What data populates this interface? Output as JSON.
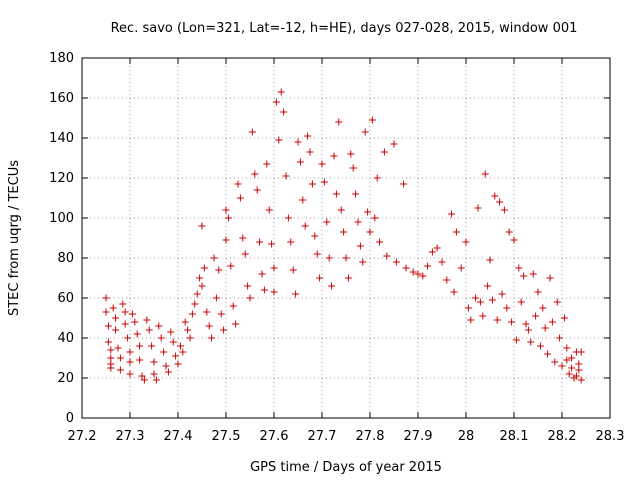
{
  "chart_data": {
    "type": "scatter",
    "title": "Rec. savo (Lon=321, Lat=-12, h=HE), days 027-028, 2015, window 001",
    "xlabel": "GPS time / Days of year 2015",
    "ylabel": "STEC from uqrg / TECUs",
    "xlim": [
      27.2,
      28.3
    ],
    "ylim": [
      0,
      180
    ],
    "xticks": [
      27.2,
      27.3,
      27.4,
      27.5,
      27.6,
      27.7,
      27.8,
      27.9,
      28,
      28.1,
      28.2,
      28.3
    ],
    "xtick_labels": [
      "27.2",
      "27.3",
      "27.4",
      "27.5",
      "27.6",
      "27.7",
      "27.8",
      "27.9",
      "28",
      "28.1",
      "28.2",
      "28.3"
    ],
    "yticks": [
      0,
      20,
      40,
      60,
      80,
      100,
      120,
      140,
      160,
      180
    ],
    "ytick_labels": [
      "0",
      "20",
      "40",
      "60",
      "80",
      "100",
      "120",
      "140",
      "160",
      "180"
    ],
    "grid": true,
    "marker": "+",
    "marker_color": "#cc0000",
    "series": [
      {
        "points": [
          [
            27.25,
            60
          ],
          [
            27.25,
            53
          ],
          [
            27.255,
            46
          ],
          [
            27.255,
            38
          ],
          [
            27.26,
            34
          ],
          [
            27.26,
            30
          ],
          [
            27.26,
            27
          ],
          [
            27.26,
            25
          ],
          [
            27.265,
            55
          ],
          [
            27.27,
            50
          ],
          [
            27.27,
            44
          ],
          [
            27.275,
            35
          ],
          [
            27.28,
            30
          ],
          [
            27.28,
            24
          ],
          [
            27.285,
            57
          ],
          [
            27.29,
            53
          ],
          [
            27.29,
            47
          ],
          [
            27.295,
            40
          ],
          [
            27.3,
            33
          ],
          [
            27.3,
            28
          ],
          [
            27.3,
            22
          ],
          [
            27.305,
            52
          ],
          [
            27.31,
            48
          ],
          [
            27.315,
            42
          ],
          [
            27.32,
            36
          ],
          [
            27.32,
            29
          ],
          [
            27.325,
            21
          ],
          [
            27.33,
            19
          ],
          [
            27.335,
            49
          ],
          [
            27.34,
            44
          ],
          [
            27.345,
            36
          ],
          [
            27.35,
            28
          ],
          [
            27.35,
            22
          ],
          [
            27.355,
            19
          ],
          [
            27.36,
            46
          ],
          [
            27.365,
            40
          ],
          [
            27.37,
            33
          ],
          [
            27.375,
            26
          ],
          [
            27.38,
            23
          ],
          [
            27.385,
            43
          ],
          [
            27.39,
            38
          ],
          [
            27.395,
            31
          ],
          [
            27.4,
            27
          ],
          [
            27.405,
            36
          ],
          [
            27.41,
            33
          ],
          [
            27.415,
            48
          ],
          [
            27.42,
            44
          ],
          [
            27.425,
            40
          ],
          [
            27.43,
            52
          ],
          [
            27.435,
            57
          ],
          [
            27.44,
            62
          ],
          [
            27.445,
            70
          ],
          [
            27.45,
            66
          ],
          [
            27.45,
            96
          ],
          [
            27.455,
            75
          ],
          [
            27.46,
            53
          ],
          [
            27.465,
            46
          ],
          [
            27.47,
            40
          ],
          [
            27.475,
            80
          ],
          [
            27.48,
            60
          ],
          [
            27.485,
            74
          ],
          [
            27.49,
            52
          ],
          [
            27.495,
            44
          ],
          [
            27.5,
            104
          ],
          [
            27.5,
            89
          ],
          [
            27.505,
            100
          ],
          [
            27.51,
            76
          ],
          [
            27.515,
            56
          ],
          [
            27.52,
            47
          ],
          [
            27.525,
            117
          ],
          [
            27.53,
            110
          ],
          [
            27.535,
            90
          ],
          [
            27.54,
            82
          ],
          [
            27.545,
            66
          ],
          [
            27.55,
            60
          ],
          [
            27.555,
            143
          ],
          [
            27.56,
            122
          ],
          [
            27.565,
            114
          ],
          [
            27.57,
            88
          ],
          [
            27.575,
            72
          ],
          [
            27.58,
            64
          ],
          [
            27.585,
            127
          ],
          [
            27.59,
            104
          ],
          [
            27.595,
            87
          ],
          [
            27.6,
            75
          ],
          [
            27.6,
            63
          ],
          [
            27.605,
            158
          ],
          [
            27.61,
            139
          ],
          [
            27.615,
            163
          ],
          [
            27.62,
            153
          ],
          [
            27.625,
            121
          ],
          [
            27.63,
            100
          ],
          [
            27.635,
            88
          ],
          [
            27.64,
            74
          ],
          [
            27.645,
            62
          ],
          [
            27.65,
            138
          ],
          [
            27.655,
            128
          ],
          [
            27.66,
            109
          ],
          [
            27.665,
            96
          ],
          [
            27.67,
            141
          ],
          [
            27.675,
            133
          ],
          [
            27.68,
            117
          ],
          [
            27.685,
            91
          ],
          [
            27.69,
            82
          ],
          [
            27.695,
            70
          ],
          [
            27.7,
            127
          ],
          [
            27.705,
            118
          ],
          [
            27.71,
            98
          ],
          [
            27.715,
            80
          ],
          [
            27.72,
            66
          ],
          [
            27.725,
            131
          ],
          [
            27.73,
            112
          ],
          [
            27.735,
            148
          ],
          [
            27.74,
            104
          ],
          [
            27.745,
            93
          ],
          [
            27.75,
            80
          ],
          [
            27.755,
            70
          ],
          [
            27.76,
            132
          ],
          [
            27.765,
            125
          ],
          [
            27.77,
            112
          ],
          [
            27.775,
            98
          ],
          [
            27.78,
            86
          ],
          [
            27.785,
            78
          ],
          [
            27.79,
            143
          ],
          [
            27.795,
            103
          ],
          [
            27.8,
            93
          ],
          [
            27.805,
            149
          ],
          [
            27.81,
            100
          ],
          [
            27.815,
            120
          ],
          [
            27.82,
            88
          ],
          [
            27.83,
            133
          ],
          [
            27.835,
            81
          ],
          [
            27.85,
            137
          ],
          [
            27.855,
            78
          ],
          [
            27.87,
            117
          ],
          [
            27.875,
            75
          ],
          [
            27.89,
            73
          ],
          [
            27.9,
            72
          ],
          [
            27.91,
            71
          ],
          [
            27.92,
            76
          ],
          [
            27.93,
            83
          ],
          [
            27.94,
            85
          ],
          [
            27.95,
            78
          ],
          [
            27.96,
            69
          ],
          [
            27.97,
            102
          ],
          [
            27.975,
            63
          ],
          [
            27.98,
            93
          ],
          [
            27.99,
            75
          ],
          [
            28.0,
            88
          ],
          [
            28.005,
            55
          ],
          [
            28.01,
            49
          ],
          [
            28.02,
            60
          ],
          [
            28.025,
            105
          ],
          [
            28.03,
            58
          ],
          [
            28.035,
            51
          ],
          [
            28.04,
            122
          ],
          [
            28.045,
            66
          ],
          [
            28.05,
            79
          ],
          [
            28.055,
            59
          ],
          [
            28.06,
            111
          ],
          [
            28.065,
            49
          ],
          [
            28.07,
            108
          ],
          [
            28.075,
            62
          ],
          [
            28.08,
            104
          ],
          [
            28.085,
            55
          ],
          [
            28.09,
            93
          ],
          [
            28.095,
            48
          ],
          [
            28.1,
            89
          ],
          [
            28.105,
            39
          ],
          [
            28.11,
            75
          ],
          [
            28.115,
            58
          ],
          [
            28.12,
            71
          ],
          [
            28.125,
            47
          ],
          [
            28.13,
            44
          ],
          [
            28.135,
            38
          ],
          [
            28.14,
            72
          ],
          [
            28.145,
            51
          ],
          [
            28.15,
            63
          ],
          [
            28.155,
            36
          ],
          [
            28.16,
            55
          ],
          [
            28.165,
            45
          ],
          [
            28.17,
            32
          ],
          [
            28.175,
            70
          ],
          [
            28.18,
            48
          ],
          [
            28.185,
            28
          ],
          [
            28.19,
            58
          ],
          [
            28.195,
            40
          ],
          [
            28.2,
            26
          ],
          [
            28.205,
            50
          ],
          [
            28.21,
            35
          ],
          [
            28.215,
            22
          ],
          [
            28.22,
            30
          ],
          [
            28.225,
            20
          ],
          [
            28.23,
            33
          ],
          [
            28.235,
            24
          ],
          [
            28.24,
            19
          ],
          [
            28.24,
            33
          ],
          [
            28.235,
            27
          ],
          [
            28.23,
            21
          ],
          [
            28.22,
            25
          ],
          [
            28.21,
            29
          ]
        ]
      }
    ]
  }
}
